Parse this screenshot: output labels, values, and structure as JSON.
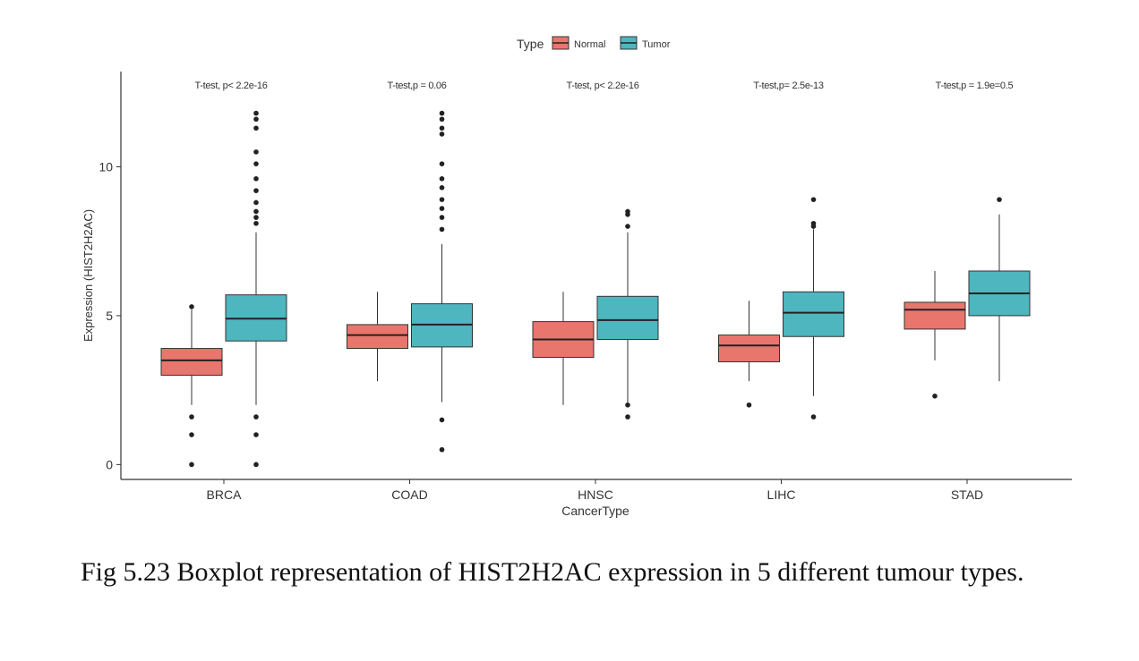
{
  "figure": {
    "caption": "Fig 5.23 Boxplot representation of HIST2H2AC expression in 5 different tumour types."
  },
  "chart_data": {
    "type": "boxplot",
    "title": "",
    "xlabel": "CancerType",
    "ylabel": "Expression (HIST2H2AC)",
    "ylim": [
      -0.5,
      13.2
    ],
    "y_ticks": [
      0,
      5,
      10
    ],
    "grid": false,
    "legend": {
      "title": "Type",
      "position": "top",
      "entries": [
        {
          "name": "Normal",
          "color": "#E8766D"
        },
        {
          "name": "Tumor",
          "color": "#4DB6BF"
        }
      ]
    },
    "categories": [
      "BRCA",
      "COAD",
      "HNSC",
      "LIHC",
      "STAD"
    ],
    "annotations": [
      "T-test, p< 2.2e-16",
      "T-test,p = 0.06",
      "T-test, p< 2.2e-16",
      "T-test,p= 2.5e-13",
      "T-test,p = 1.9e=0.5"
    ],
    "series": [
      {
        "name": "Normal",
        "color": "#E8766D",
        "boxes": [
          {
            "min": 2.0,
            "q1": 3.0,
            "median": 3.5,
            "q3": 3.9,
            "max": 5.2,
            "outliers": [
              5.3,
              1.6,
              1.0,
              0.0
            ]
          },
          {
            "min": 2.8,
            "q1": 3.9,
            "median": 4.35,
            "q3": 4.7,
            "max": 5.8,
            "outliers": []
          },
          {
            "min": 2.0,
            "q1": 3.6,
            "median": 4.2,
            "q3": 4.8,
            "max": 5.8,
            "outliers": []
          },
          {
            "min": 2.8,
            "q1": 3.45,
            "median": 4.0,
            "q3": 4.35,
            "max": 5.5,
            "outliers": [
              2.0
            ]
          },
          {
            "min": 3.5,
            "q1": 4.55,
            "median": 5.2,
            "q3": 5.45,
            "max": 6.5,
            "outliers": [
              2.3
            ]
          }
        ]
      },
      {
        "name": "Tumor",
        "color": "#4DB6BF",
        "boxes": [
          {
            "min": 2.0,
            "q1": 4.15,
            "median": 4.9,
            "q3": 5.7,
            "max": 7.8,
            "outliers": [
              11.8,
              11.6,
              11.3,
              10.5,
              10.1,
              9.6,
              9.2,
              8.8,
              8.5,
              8.3,
              8.1,
              1.6,
              1.0,
              0.0
            ]
          },
          {
            "min": 2.1,
            "q1": 3.95,
            "median": 4.7,
            "q3": 5.4,
            "max": 7.4,
            "outliers": [
              11.8,
              11.6,
              11.3,
              11.1,
              10.1,
              9.6,
              9.3,
              8.9,
              8.6,
              8.3,
              7.9,
              1.5,
              0.5
            ]
          },
          {
            "min": 2.0,
            "q1": 4.2,
            "median": 4.85,
            "q3": 5.65,
            "max": 7.8,
            "outliers": [
              8.5,
              8.4,
              8.0,
              2.0,
              1.6
            ]
          },
          {
            "min": 2.3,
            "q1": 4.3,
            "median": 5.1,
            "q3": 5.8,
            "max": 7.9,
            "outliers": [
              8.9,
              8.1,
              8.0,
              1.6
            ]
          },
          {
            "min": 2.8,
            "q1": 5.0,
            "median": 5.75,
            "q3": 6.5,
            "max": 8.4,
            "outliers": [
              8.9
            ]
          }
        ]
      }
    ]
  }
}
